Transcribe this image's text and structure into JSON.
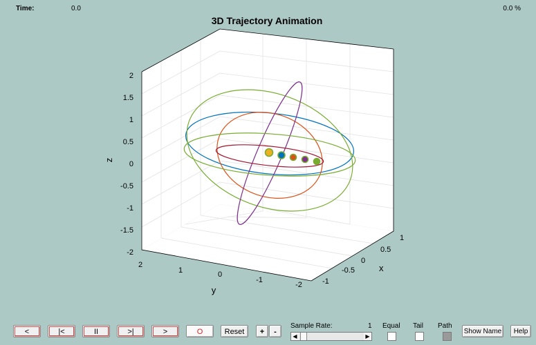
{
  "header": {
    "time_label": "Time:",
    "time_value": "0.0",
    "percent": "0.0 %"
  },
  "chart_data": {
    "type": "3d-line",
    "title": "3D Trajectory Animation",
    "xlabel": "x",
    "ylabel": "y",
    "zlabel": "z",
    "x_ticks": [
      "1",
      "0.5",
      "0",
      "-0.5",
      "-1"
    ],
    "y_ticks": [
      "2",
      "1",
      "0",
      "-1",
      "-2"
    ],
    "z_ticks": [
      "2",
      "1.5",
      "1",
      "0.5",
      "0",
      "-0.5",
      "-1",
      "-1.5",
      "-2"
    ],
    "xlim": [
      -1,
      1
    ],
    "ylim": [
      -2,
      2
    ],
    "zlim": [
      -2,
      2
    ],
    "grid": true,
    "series": [
      {
        "color": "#0072bd",
        "orbit": "large, slightly tilted"
      },
      {
        "color": "#d95319",
        "orbit": "medium, inclined"
      },
      {
        "color": "#77ac30",
        "orbit": "large, inclined"
      },
      {
        "color": "#7e2f8e",
        "orbit": "near-polar"
      },
      {
        "color": "#a2142f",
        "orbit": "small, near-equatorial"
      }
    ],
    "markers": [
      {
        "fill": "#edb120",
        "edge": "#77ac30"
      },
      {
        "fill": "#0072bd",
        "edge": "#77ac30"
      },
      {
        "fill": "#d95319",
        "edge": "#77ac30"
      },
      {
        "fill": "#7e2f8e",
        "edge": "#77ac30"
      },
      {
        "fill": "#77ac30",
        "edge": "#77ac30"
      }
    ]
  },
  "controls": {
    "prev": "<",
    "first": "|<",
    "pause": "II",
    "last": ">|",
    "next": ">",
    "record": "O",
    "reset": "Reset",
    "plus": "+",
    "minus": "-",
    "sample_rate_label": "Sample Rate:",
    "sample_rate_value": "1",
    "equal_label": "Equal",
    "tail_label": "Tail",
    "path_label": "Path",
    "show_name": "Show Name",
    "help": "Help",
    "slider_left": "◀",
    "slider_right": "▶"
  }
}
